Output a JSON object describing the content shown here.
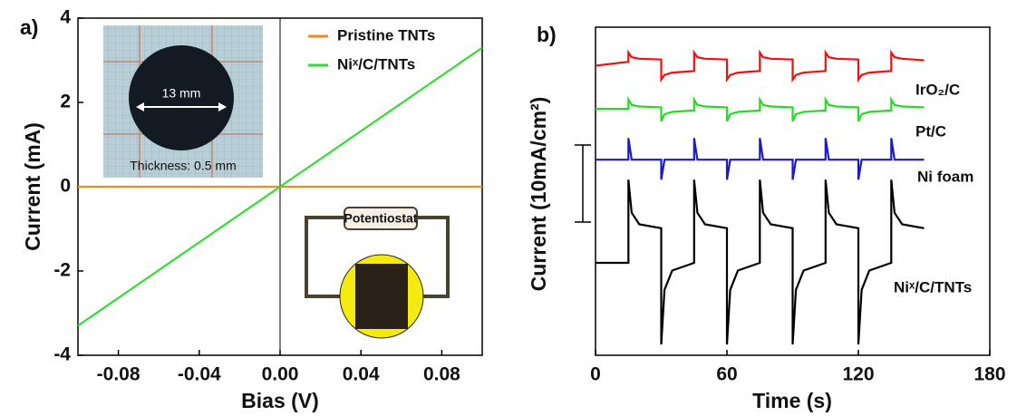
{
  "chart_data": [
    {
      "type": "line",
      "panel": "a)",
      "xlabel": "Bias (V)",
      "ylabel": "Current (mA)",
      "x": [
        -0.1,
        0.1
      ],
      "series": [
        {
          "name": "Pristine TNTs",
          "color": "#f28a1e",
          "values": [
            0,
            0
          ]
        },
        {
          "name": "Niˣ/C/TNTs",
          "color": "#33dd33",
          "values": [
            -3.3,
            3.3
          ]
        }
      ],
      "xlim": [
        -0.1,
        0.1
      ],
      "xticks": [
        -0.08,
        -0.04,
        {
          "value": 0,
          "label": "0.00"
        },
        0.04,
        0.08
      ],
      "ylim": [
        -4,
        4
      ],
      "yticks": [
        -4,
        -2,
        0,
        2,
        4
      ],
      "annotations": [
        "13 mm",
        "Thickness: 0.5  mm",
        "Potentiostat"
      ]
    },
    {
      "type": "line",
      "panel": "b)",
      "xlabel": "Time (s)",
      "ylabel": "Current  (10mA/cm²)",
      "x": [
        0,
        15,
        15,
        16.5,
        20,
        30,
        30,
        31.5,
        35,
        45,
        45,
        46.5,
        50,
        60,
        60,
        61.5,
        65,
        75,
        75,
        76.5,
        80,
        90,
        90,
        91.5,
        95,
        105,
        105,
        106.5,
        110,
        120,
        120,
        121.5,
        125,
        135,
        135,
        136.5,
        140,
        150
      ],
      "series": [
        {
          "name": "IrO₂/C",
          "color": "#ee1111",
          "values": [
            37.6,
            38.1,
            39.3,
            38.7,
            38.5,
            38.4,
            35.8,
            36.4,
            36.7,
            36.9,
            39.3,
            38.7,
            38.5,
            38.4,
            35.8,
            36.4,
            36.7,
            36.9,
            39.3,
            38.7,
            38.5,
            38.4,
            35.8,
            36.4,
            36.7,
            36.9,
            39.3,
            38.7,
            38.5,
            38.4,
            35.8,
            36.4,
            36.7,
            36.9,
            39.3,
            38.7,
            38.5,
            38.3
          ]
        },
        {
          "name": "Pt/C",
          "color": "#22dd22",
          "values": [
            32.0,
            32.0,
            33.2,
            32.5,
            32.3,
            32.2,
            30.4,
            31.3,
            31.6,
            31.8,
            33.2,
            32.5,
            32.3,
            32.2,
            30.4,
            31.3,
            31.6,
            31.8,
            33.2,
            32.5,
            32.3,
            32.2,
            30.4,
            31.3,
            31.6,
            31.8,
            33.2,
            32.5,
            32.3,
            32.2,
            30.4,
            31.3,
            31.6,
            31.8,
            33.2,
            32.5,
            32.3,
            32.2
          ]
        },
        {
          "name": "Ni foam",
          "color": "#1a1acc",
          "values": [
            25.4,
            25.4,
            28.2,
            25.4,
            25.4,
            25.4,
            22.8,
            25.4,
            25.4,
            25.4,
            28.2,
            25.4,
            25.4,
            25.4,
            22.8,
            25.4,
            25.4,
            25.4,
            28.2,
            25.4,
            25.4,
            25.4,
            22.8,
            25.4,
            25.4,
            25.4,
            28.2,
            25.4,
            25.4,
            25.4,
            22.8,
            25.4,
            25.4,
            25.4,
            28.2,
            25.4,
            25.4,
            25.4
          ]
        },
        {
          "name": "Niˣ/C/TNTs",
          "color": "#000000",
          "values": [
            12.0,
            12.0,
            22.8,
            18.5,
            17.0,
            16.5,
            1.4,
            8.5,
            11.0,
            12.0,
            22.8,
            18.5,
            17.0,
            16.5,
            1.4,
            8.5,
            11.0,
            12.0,
            22.8,
            18.5,
            17.0,
            16.5,
            1.4,
            8.5,
            11.0,
            12.0,
            22.8,
            18.5,
            17.0,
            16.5,
            1.4,
            8.5,
            11.0,
            12.0,
            22.8,
            18.5,
            17.0,
            16.5
          ]
        }
      ],
      "xlim": [
        0,
        180
      ],
      "xticks": [
        0,
        60,
        120,
        180
      ],
      "ylim": [
        0,
        42.6
      ]
    }
  ]
}
